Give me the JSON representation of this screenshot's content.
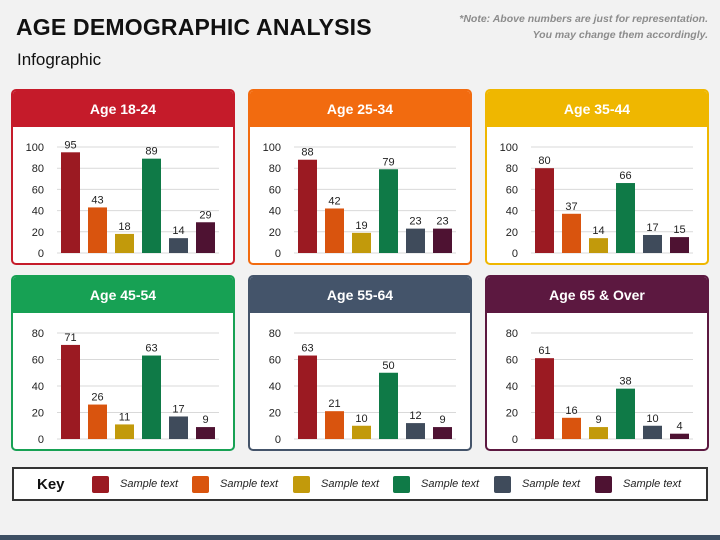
{
  "header": {
    "title": "AGE DEMOGRAPHIC ANALYSIS",
    "subtitle": "Infographic",
    "note_line1": "*Note: Above numbers are just for representation.",
    "note_line2": "You may change them accordingly."
  },
  "series_colors": [
    "#9b1a22",
    "#d9540e",
    "#c29a0b",
    "#0f7a47",
    "#3f4b5b",
    "#4e1232"
  ],
  "chart_data": [
    {
      "type": "bar",
      "title": "Age 18-24",
      "header_color": "#c51b2a",
      "values": [
        95,
        43,
        18,
        89,
        14,
        29
      ],
      "ylim": [
        0,
        100
      ],
      "yticks": [
        "0",
        "20",
        "40",
        "60",
        "80",
        "100"
      ],
      "grid": true
    },
    {
      "type": "bar",
      "title": "Age 25-34",
      "header_color": "#f26b0f",
      "values": [
        88,
        42,
        19,
        79,
        23,
        23
      ],
      "ylim": [
        0,
        100
      ],
      "yticks": [
        "0",
        "20",
        "40",
        "60",
        "80",
        "100"
      ],
      "grid": true
    },
    {
      "type": "bar",
      "title": "Age 35-44",
      "header_color": "#efb700",
      "values": [
        80,
        37,
        14,
        66,
        17,
        15
      ],
      "ylim": [
        0,
        100
      ],
      "yticks": [
        "0",
        "20",
        "40",
        "60",
        "80",
        "100"
      ],
      "grid": true
    },
    {
      "type": "bar",
      "title": "Age 45-54",
      "header_color": "#17a154",
      "values": [
        71,
        26,
        11,
        63,
        17,
        9
      ],
      "ylim": [
        0,
        80
      ],
      "yticks": [
        "0",
        "20",
        "40",
        "60",
        "80"
      ],
      "grid": true
    },
    {
      "type": "bar",
      "title": "Age 55-64",
      "header_color": "#44546a",
      "values": [
        63,
        21,
        10,
        50,
        12,
        9
      ],
      "ylim": [
        0,
        80
      ],
      "yticks": [
        "0",
        "20",
        "40",
        "60",
        "80"
      ],
      "grid": true
    },
    {
      "type": "bar",
      "title": "Age 65 & Over",
      "header_color": "#5c1840",
      "values": [
        61,
        16,
        9,
        38,
        10,
        4
      ],
      "ylim": [
        0,
        80
      ],
      "yticks": [
        "0",
        "20",
        "40",
        "60",
        "80"
      ],
      "grid": true
    }
  ],
  "key": {
    "title": "Key",
    "items": [
      "Sample text",
      "Sample text",
      "Sample text",
      "Sample text",
      "Sample text",
      "Sample text"
    ]
  }
}
